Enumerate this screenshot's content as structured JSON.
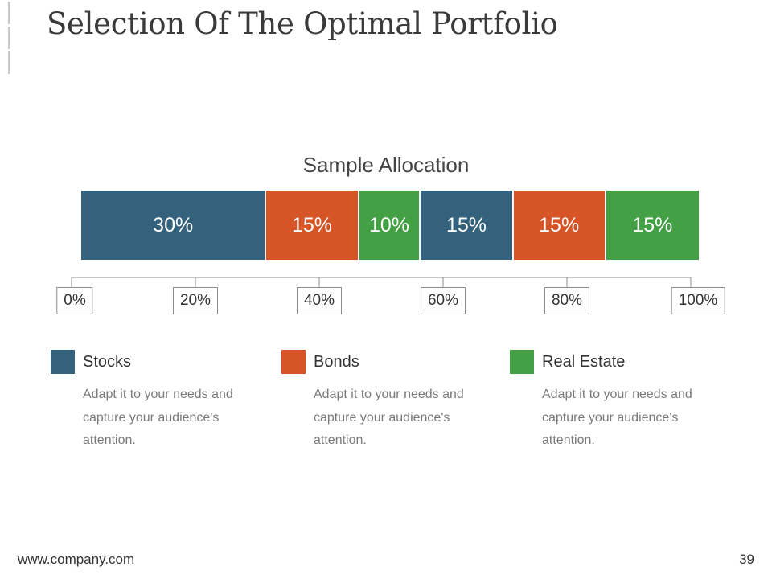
{
  "slide": {
    "title": "Selection Of The Optimal Portfolio",
    "footer_url": "www.company.com",
    "page_number": "39"
  },
  "chart_data": {
    "type": "bar",
    "orientation": "horizontal-stacked-100",
    "title": "Sample Allocation",
    "xlim": [
      0,
      100
    ],
    "xticks": [
      "0%",
      "20%",
      "40%",
      "60%",
      "80%",
      "100%"
    ],
    "segments": [
      {
        "label": "30%",
        "value": 30,
        "category": "Stocks",
        "color": "#34627c"
      },
      {
        "label": "15%",
        "value": 15,
        "category": "Bonds",
        "color": "#d75426"
      },
      {
        "label": "10%",
        "value": 10,
        "category": "Real Estate",
        "color": "#44a044"
      },
      {
        "label": "15%",
        "value": 15,
        "category": "Stocks",
        "color": "#34627c"
      },
      {
        "label": "15%",
        "value": 15,
        "category": "Bonds",
        "color": "#d75426"
      },
      {
        "label": "15%",
        "value": 15,
        "category": "Real Estate",
        "color": "#44a044"
      }
    ],
    "legend": [
      {
        "label": "Stocks",
        "color": "#34627c",
        "description": "Adapt it to your needs and capture your audience's attention."
      },
      {
        "label": "Bonds",
        "color": "#d75426",
        "description": "Adapt it to your needs and capture your audience's attention."
      },
      {
        "label": "Real Estate",
        "color": "#44a044",
        "description": "Adapt it to your needs and capture your audience's attention."
      }
    ]
  }
}
